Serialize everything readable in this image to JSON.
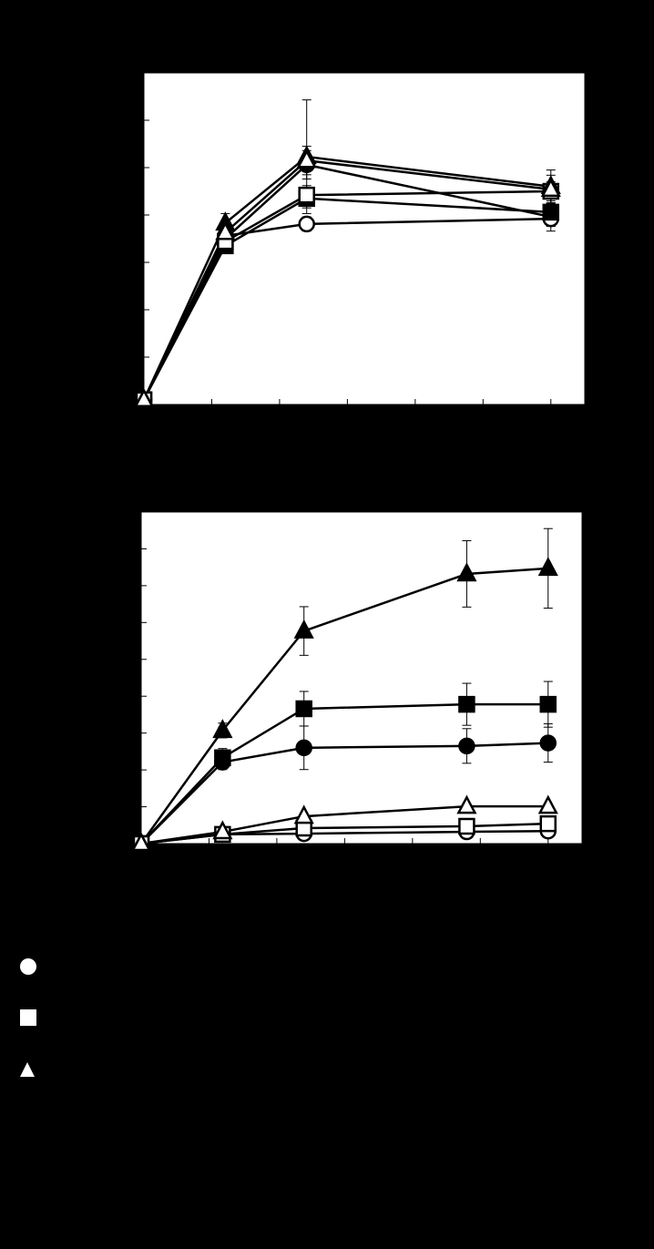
{
  "chart_data": [
    {
      "type": "line",
      "x": [
        0,
        1.2,
        2.4,
        6
      ],
      "xlim": [
        0,
        6.5
      ],
      "xticks": [
        1,
        2,
        3,
        4,
        5,
        6
      ],
      "ylim": [
        0,
        7
      ],
      "yticks": [
        1,
        2,
        3,
        4,
        5,
        6
      ],
      "series": [
        {
          "marker": "circle",
          "filled": true,
          "color": "#000000",
          "values": [
            0.1,
            3.5,
            5.06,
            3.96
          ],
          "errors": [
            null,
            0.15,
            0.3,
            0.3
          ]
        },
        {
          "marker": "circle",
          "filled": false,
          "color": "#000000",
          "values": [
            0.1,
            3.56,
            3.81,
            3.92
          ],
          "errors": [
            null,
            0.1,
            0.15,
            0.15
          ]
        },
        {
          "marker": "square",
          "filled": true,
          "color": "#000000",
          "values": [
            0.1,
            3.35,
            4.35,
            4.06
          ],
          "errors": [
            null,
            0.12,
            0.2,
            0.3
          ]
        },
        {
          "marker": "square",
          "filled": false,
          "color": "#000000",
          "values": [
            0.1,
            3.44,
            4.42,
            4.5
          ],
          "errors": [
            null,
            0.1,
            0.2,
            0.2
          ]
        },
        {
          "marker": "triangle",
          "filled": true,
          "color": "#000000",
          "values": [
            0.1,
            3.83,
            5.23,
            4.6
          ],
          "errors": [
            null,
            0.2,
            1.2,
            0.35
          ]
        },
        {
          "marker": "triangle",
          "filled": false,
          "color": "#000000",
          "values": [
            0.1,
            3.63,
            5.15,
            4.54
          ],
          "errors": [
            null,
            0.15,
            0.3,
            0.3
          ]
        }
      ]
    },
    {
      "type": "line",
      "x": [
        0,
        1.2,
        2.4,
        4.8,
        6
      ],
      "xlim": [
        0,
        6.5
      ],
      "xticks": [
        1,
        2,
        3,
        4,
        5,
        6
      ],
      "ylim": [
        0,
        9
      ],
      "yticks": [
        1,
        2,
        3,
        4,
        5,
        6,
        7,
        8
      ],
      "series": [
        {
          "marker": "circle",
          "filled": true,
          "color": "#000000",
          "values": [
            0,
            2.21,
            2.6,
            2.65,
            2.73
          ],
          "errors": [
            null,
            0.2,
            0.59,
            0.47,
            0.52
          ]
        },
        {
          "marker": "circle",
          "filled": false,
          "color": "#000000",
          "values": [
            0,
            0.25,
            0.27,
            0.32,
            0.34
          ],
          "errors": [
            null,
            null,
            null,
            null,
            null
          ]
        },
        {
          "marker": "square",
          "filled": true,
          "color": "#000000",
          "values": [
            0,
            2.33,
            3.66,
            3.78,
            3.78
          ],
          "errors": [
            null,
            0.25,
            0.47,
            0.57,
            0.62
          ]
        },
        {
          "marker": "square",
          "filled": false,
          "color": "#000000",
          "values": [
            0,
            0.25,
            0.42,
            0.47,
            0.54
          ],
          "errors": [
            null,
            null,
            null,
            null,
            null
          ]
        },
        {
          "marker": "triangle",
          "filled": true,
          "color": "#000000",
          "values": [
            0,
            3.07,
            5.77,
            7.32,
            7.47
          ],
          "errors": [
            null,
            0.2,
            0.66,
            0.9,
            1.08
          ]
        },
        {
          "marker": "triangle",
          "filled": false,
          "color": "#000000",
          "values": [
            0,
            0.32,
            0.74,
            1.01,
            1.01
          ],
          "errors": [
            null,
            null,
            null,
            null,
            null
          ]
        }
      ]
    }
  ]
}
